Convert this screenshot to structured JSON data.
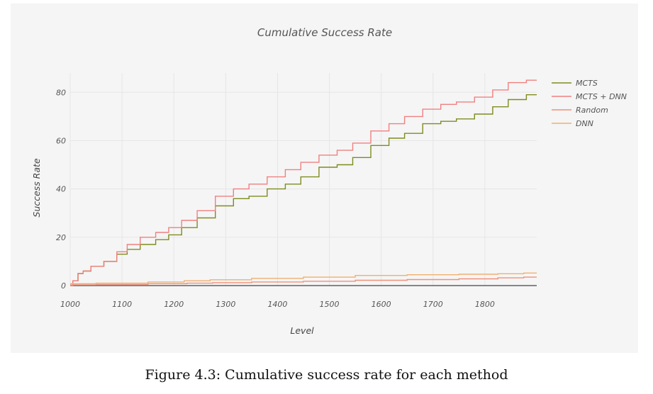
{
  "caption": "Figure 4.3: Cumulative success rate for each method",
  "chart_data": {
    "type": "line",
    "title": "Cumulative Success Rate",
    "xlabel": "Level",
    "ylabel": "Success Rate",
    "xlim": [
      1000,
      1900
    ],
    "ylim": [
      0,
      88
    ],
    "xticks": [
      1000,
      1100,
      1200,
      1300,
      1400,
      1500,
      1600,
      1700,
      1800
    ],
    "yticks": [
      0,
      20,
      40,
      60,
      80
    ],
    "grid": true,
    "legend_position": "top-right",
    "series": [
      {
        "name": "MCTS",
        "color": "#7f8c1f",
        "x": [
          1000,
          1010,
          1020,
          1030,
          1050,
          1080,
          1100,
          1120,
          1150,
          1180,
          1200,
          1230,
          1260,
          1300,
          1330,
          1360,
          1400,
          1430,
          1460,
          1500,
          1530,
          1560,
          1600,
          1630,
          1660,
          1700,
          1730,
          1760,
          1800,
          1830,
          1860,
          1900
        ],
        "y": [
          0,
          2,
          5,
          6,
          8,
          10,
          13,
          15,
          17,
          19,
          21,
          24,
          28,
          33,
          36,
          37,
          40,
          42,
          45,
          49,
          50,
          53,
          58,
          61,
          63,
          67,
          68,
          69,
          71,
          74,
          77,
          79
        ]
      },
      {
        "name": "MCTS + DNN",
        "color": "#f08080",
        "x": [
          1000,
          1010,
          1020,
          1030,
          1050,
          1080,
          1100,
          1120,
          1150,
          1180,
          1200,
          1230,
          1260,
          1300,
          1330,
          1360,
          1400,
          1430,
          1460,
          1500,
          1530,
          1560,
          1600,
          1630,
          1660,
          1700,
          1730,
          1760,
          1800,
          1830,
          1860,
          1900
        ],
        "y": [
          0,
          2,
          5,
          6,
          8,
          10,
          14,
          17,
          20,
          22,
          24,
          27,
          31,
          37,
          40,
          42,
          45,
          48,
          51,
          54,
          56,
          59,
          64,
          67,
          70,
          73,
          75,
          76,
          78,
          81,
          84,
          85
        ]
      },
      {
        "name": "Random",
        "color": "#f0907a",
        "x": [
          1000,
          1100,
          1200,
          1250,
          1300,
          1400,
          1500,
          1600,
          1700,
          1800,
          1850,
          1900
        ],
        "y": [
          0.3,
          0.5,
          0.8,
          1.0,
          1.2,
          1.5,
          1.8,
          2.2,
          2.5,
          2.8,
          3.2,
          3.5
        ]
      },
      {
        "name": "DNN",
        "color": "#f0b070",
        "x": [
          1000,
          1100,
          1200,
          1240,
          1300,
          1400,
          1500,
          1600,
          1700,
          1800,
          1850,
          1900
        ],
        "y": [
          0.8,
          1.0,
          1.5,
          2.0,
          2.4,
          3.0,
          3.5,
          4.2,
          4.5,
          4.7,
          4.9,
          5.2
        ]
      }
    ]
  }
}
